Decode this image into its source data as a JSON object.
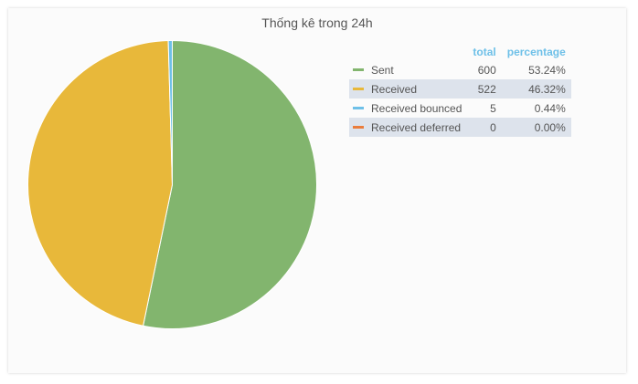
{
  "chart_data": {
    "type": "pie",
    "title": "Thống kê trong 24h",
    "legend_position": "right",
    "legend_headers": {
      "total": "total",
      "percentage": "percentage"
    },
    "slices": [
      {
        "label": "Sent",
        "value": 600,
        "percentage": "53.24%",
        "color": "#82b56e"
      },
      {
        "label": "Received",
        "value": 522,
        "percentage": "46.32%",
        "color": "#e8b83a"
      },
      {
        "label": "Received bounced",
        "value": 5,
        "percentage": "0.44%",
        "color": "#6ec0e8"
      },
      {
        "label": "Received deferred",
        "value": 0,
        "percentage": "0.00%",
        "color": "#ea7d3c"
      }
    ]
  }
}
